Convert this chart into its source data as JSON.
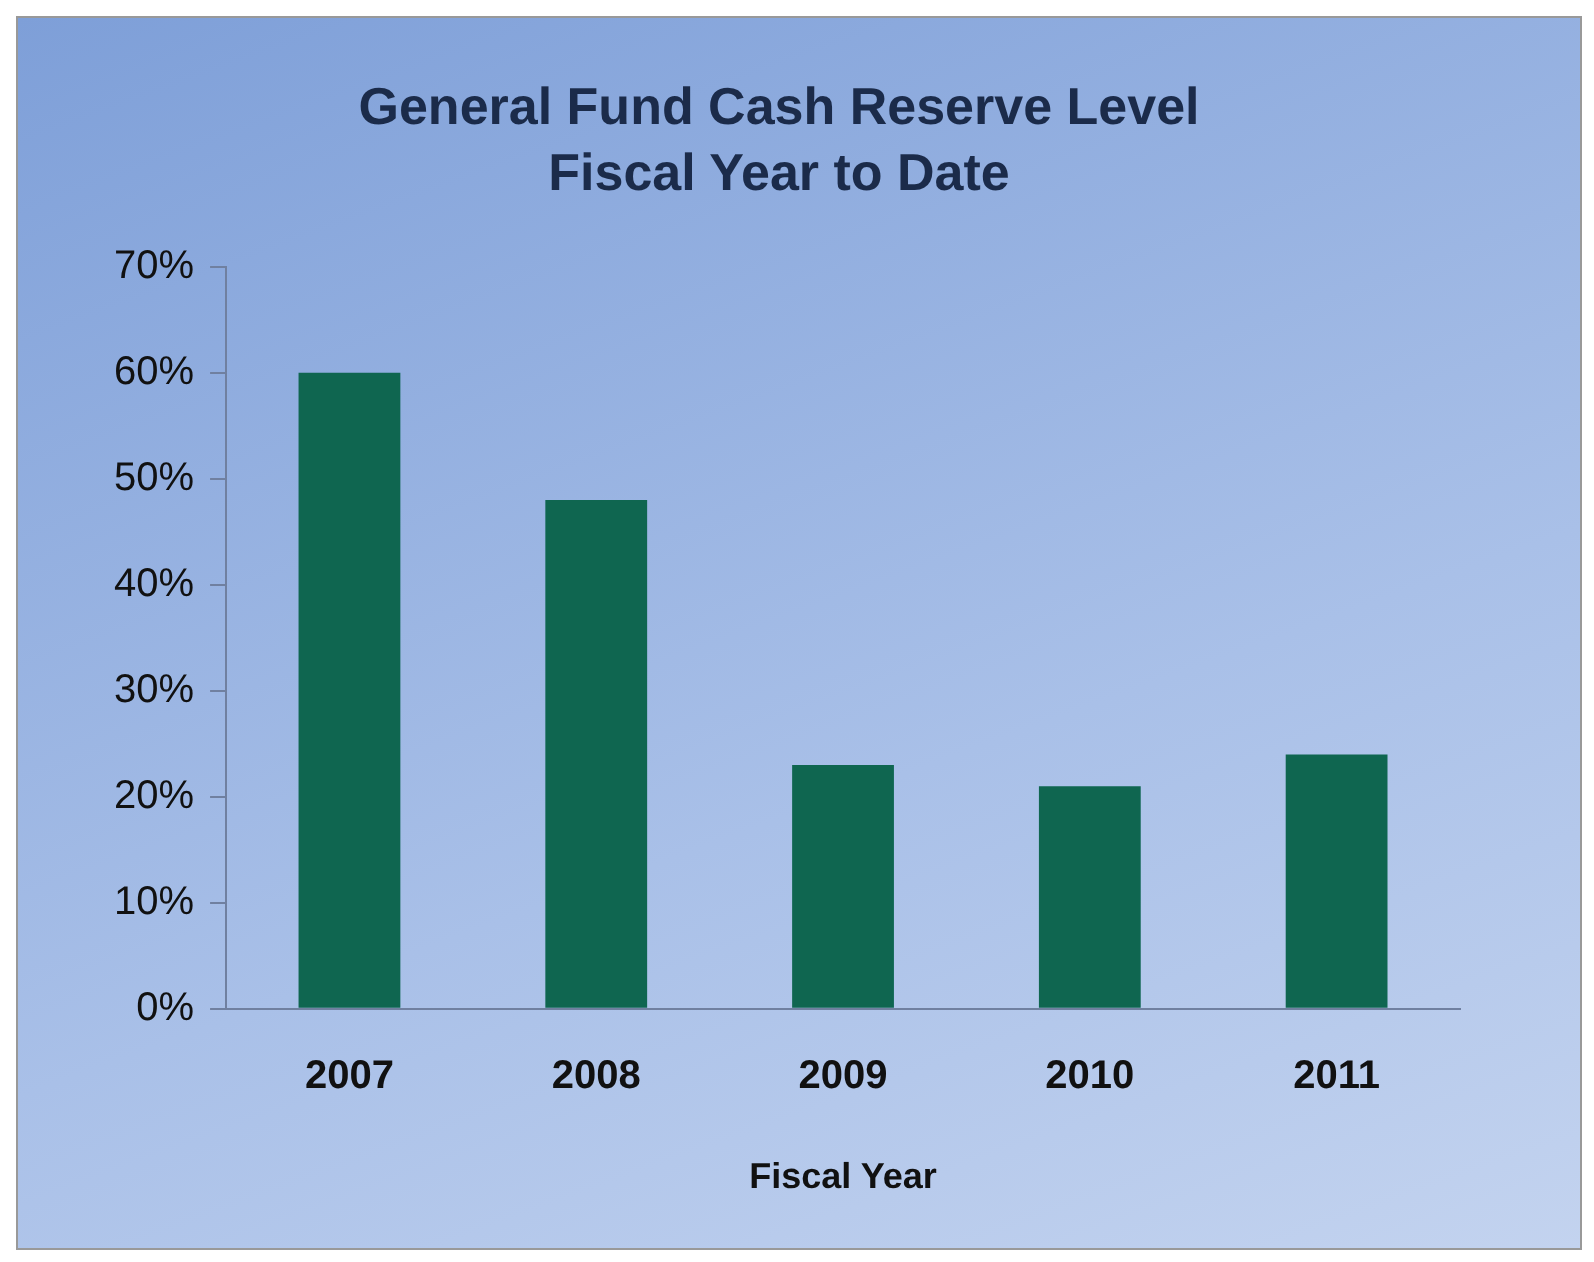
{
  "chart_data": {
    "type": "bar",
    "title": "General Fund Cash Reserve Level",
    "subtitle": "Fiscal Year to Date",
    "xlabel": "Fiscal Year",
    "categories": [
      "2007",
      "2008",
      "2009",
      "2010",
      "2011"
    ],
    "values": [
      60,
      48,
      23,
      21,
      24
    ],
    "color": "#0f6650",
    "ylim": [
      0,
      70
    ],
    "yticks": [
      {
        "value": 0,
        "label": "0%"
      },
      {
        "value": 10,
        "label": "10%"
      },
      {
        "value": 20,
        "label": "20%"
      },
      {
        "value": 30,
        "label": "30%"
      },
      {
        "value": 40,
        "label": "40%"
      },
      {
        "value": 50,
        "label": "50%"
      },
      {
        "value": 60,
        "label": "60%"
      },
      {
        "value": 70,
        "label": "70%"
      }
    ],
    "grid": false,
    "legend": false
  }
}
